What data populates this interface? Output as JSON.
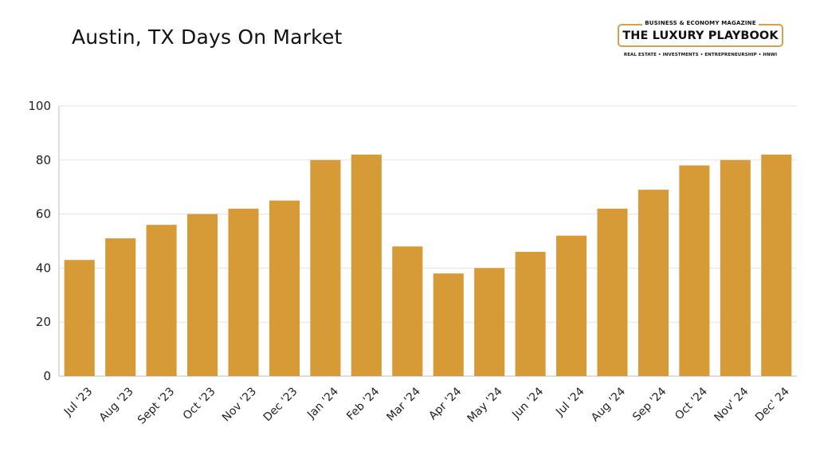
{
  "title": "Austin, TX Days On Market",
  "logo": {
    "kicker": "BUSINESS & ECONOMY MAGAZINE",
    "name": "THE LUXURY PLAYBOOK",
    "tagline": "REAL ESTATE • INVESTMENTS • ENTREPRENEURSHIP • HNWI",
    "accent": "#D4A24A"
  },
  "chart_data": {
    "type": "bar",
    "title": "Austin, TX Days On Market",
    "categories": [
      "Jul '23",
      "Aug '23",
      "Sept '23",
      "Oct '23",
      "Nov '23",
      "Dec '23",
      "Jan '24",
      "Feb '24",
      "Mar '24",
      "Apr '24",
      "May '24",
      "Jun '24",
      "Jul '24",
      "Aug '24",
      "Sep '24",
      "Oct '24",
      "Nov' 24",
      "Dec' 24"
    ],
    "values": [
      43,
      51,
      56,
      60,
      62,
      65,
      80,
      82,
      48,
      38,
      40,
      46,
      52,
      62,
      69,
      78,
      80,
      82
    ],
    "ylim": [
      0,
      100
    ],
    "yticks": [
      0,
      20,
      40,
      60,
      80,
      100
    ],
    "xlabel": "",
    "ylabel": "",
    "grid": true,
    "bar_color": "#D69A37",
    "grid_color": "#E3E3E3",
    "axis_color": "#BDBDBD"
  }
}
